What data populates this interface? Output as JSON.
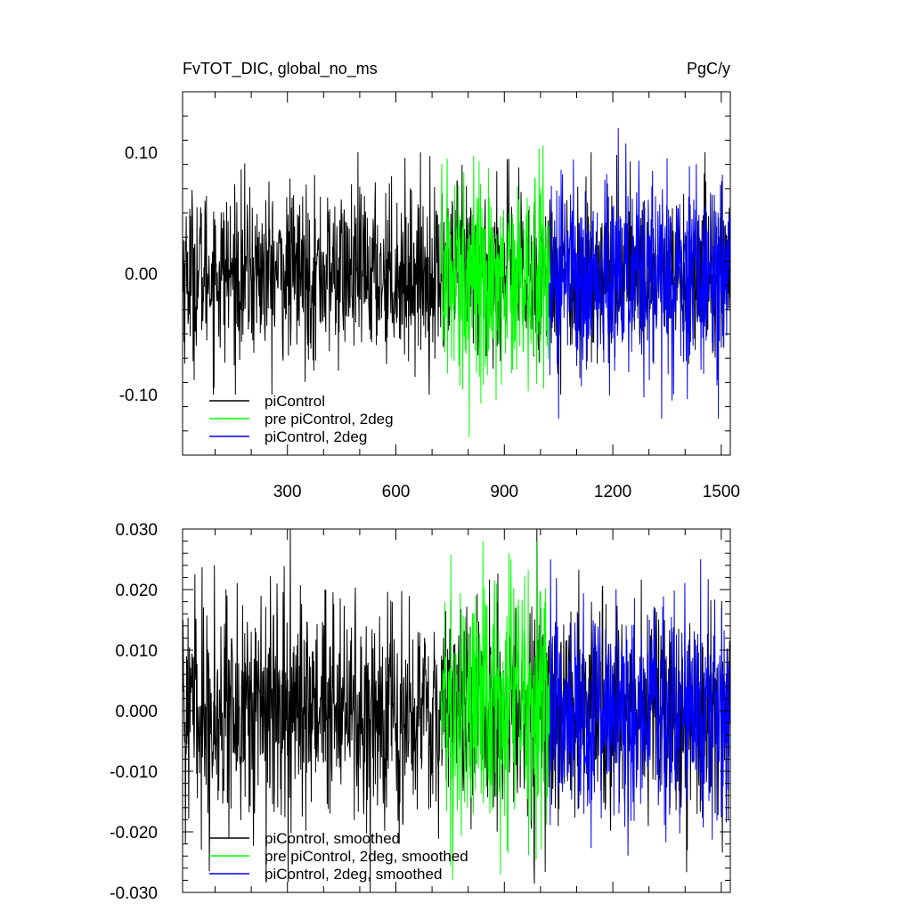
{
  "chart_data": [
    {
      "type": "line",
      "title_left": "FvTOT_DIC, global_no_ms",
      "title_right": "PgC/y",
      "xlabel": "",
      "ylabel": "",
      "xlim": [
        10,
        1525
      ],
      "ylim": [
        -0.15,
        0.15
      ],
      "yticks": [
        {
          "value": -0.1,
          "label": "-0.10"
        },
        {
          "value": 0.0,
          "label": "0.00"
        },
        {
          "value": 0.1,
          "label": "0.10"
        }
      ],
      "xticks": [
        {
          "value": 300,
          "label": "300"
        },
        {
          "value": 600,
          "label": "600"
        },
        {
          "value": 900,
          "label": "900"
        },
        {
          "value": 1200,
          "label": "1200"
        },
        {
          "value": 1500,
          "label": "1500"
        }
      ],
      "legend_position": "bottom-left",
      "series": [
        {
          "name": "piControl",
          "color": "#000000",
          "x_range": [
            10,
            1525
          ],
          "amplitude": 0.035,
          "max_abs": 0.1
        },
        {
          "name": "pre piControl, 2deg",
          "color": "#00ff00",
          "x_range": [
            725,
            1025
          ],
          "amplitude": 0.045,
          "max_abs": 0.135
        },
        {
          "name": "piControl, 2deg",
          "color": "#0000ff",
          "x_range": [
            1025,
            1525
          ],
          "amplitude": 0.04,
          "max_abs": 0.12
        }
      ]
    },
    {
      "type": "line",
      "xlabel": "",
      "ylabel": "",
      "xlim": [
        10,
        1525
      ],
      "ylim": [
        -0.03,
        0.03
      ],
      "yticks": [
        {
          "value": -0.03,
          "label": "-0.030"
        },
        {
          "value": -0.02,
          "label": "-0.020"
        },
        {
          "value": -0.01,
          "label": "-0.010"
        },
        {
          "value": 0.0,
          "label": "0.000"
        },
        {
          "value": 0.01,
          "label": "0.010"
        },
        {
          "value": 0.02,
          "label": "0.020"
        },
        {
          "value": 0.03,
          "label": "0.030"
        }
      ],
      "xticks": [
        {
          "value": 300,
          "label": ""
        },
        {
          "value": 600,
          "label": ""
        },
        {
          "value": 900,
          "label": ""
        },
        {
          "value": 1200,
          "label": ""
        },
        {
          "value": 1500,
          "label": ""
        }
      ],
      "legend_position": "bottom-left",
      "series": [
        {
          "name": "piControl, smoothed",
          "color": "#000000",
          "x_range": [
            10,
            1525
          ],
          "amplitude": 0.009,
          "max_abs": 0.03
        },
        {
          "name": "pre piControl, 2deg, smoothed",
          "color": "#00ff00",
          "x_range": [
            725,
            1025
          ],
          "amplitude": 0.011,
          "max_abs": 0.028
        },
        {
          "name": "piControl, 2deg, smoothed",
          "color": "#0000ff",
          "x_range": [
            1025,
            1525
          ],
          "amplitude": 0.009,
          "max_abs": 0.025
        }
      ]
    }
  ]
}
